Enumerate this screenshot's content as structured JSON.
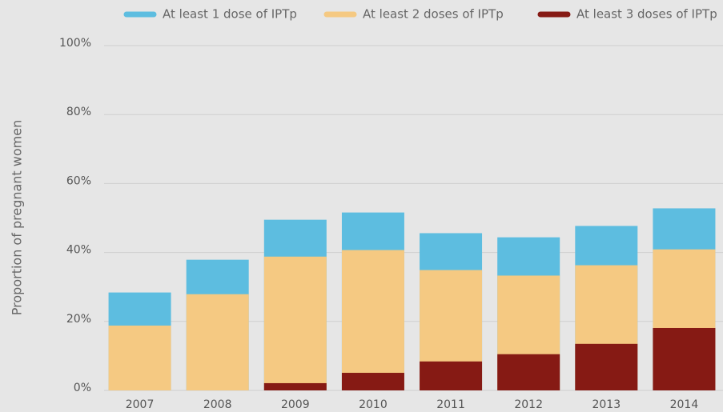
{
  "chart_data": {
    "type": "bar",
    "y_label": "Proportion of pregnant women",
    "categories": [
      "2007",
      "2008",
      "2009",
      "2010",
      "2011",
      "2012",
      "2013",
      "2014"
    ],
    "series": [
      {
        "name": "At least 1 dose of IPTp",
        "color": "#5dbde0",
        "values": [
          28.4,
          37.9,
          49.5,
          51.6,
          45.6,
          44.4,
          47.7,
          52.8
        ]
      },
      {
        "name": "At least 2 doses of IPTp",
        "color": "#f5c982",
        "values": [
          18.8,
          27.9,
          38.8,
          40.7,
          34.9,
          33.3,
          36.3,
          40.9
        ]
      },
      {
        "name": "At least 3 doses of IPTp",
        "color": "#861a14",
        "values": [
          0,
          0,
          2.1,
          5.1,
          8.4,
          10.5,
          13.5,
          18.1
        ]
      }
    ],
    "ylim": [
      0,
      100
    ],
    "yticks": [
      {
        "value": 0,
        "label": "0%"
      },
      {
        "value": 20,
        "label": "20%"
      },
      {
        "value": 40,
        "label": "40%"
      },
      {
        "value": 60,
        "label": "60%"
      },
      {
        "value": 80,
        "label": "80%"
      },
      {
        "value": 100,
        "label": "100%"
      }
    ],
    "grid": true,
    "legend": "top"
  }
}
